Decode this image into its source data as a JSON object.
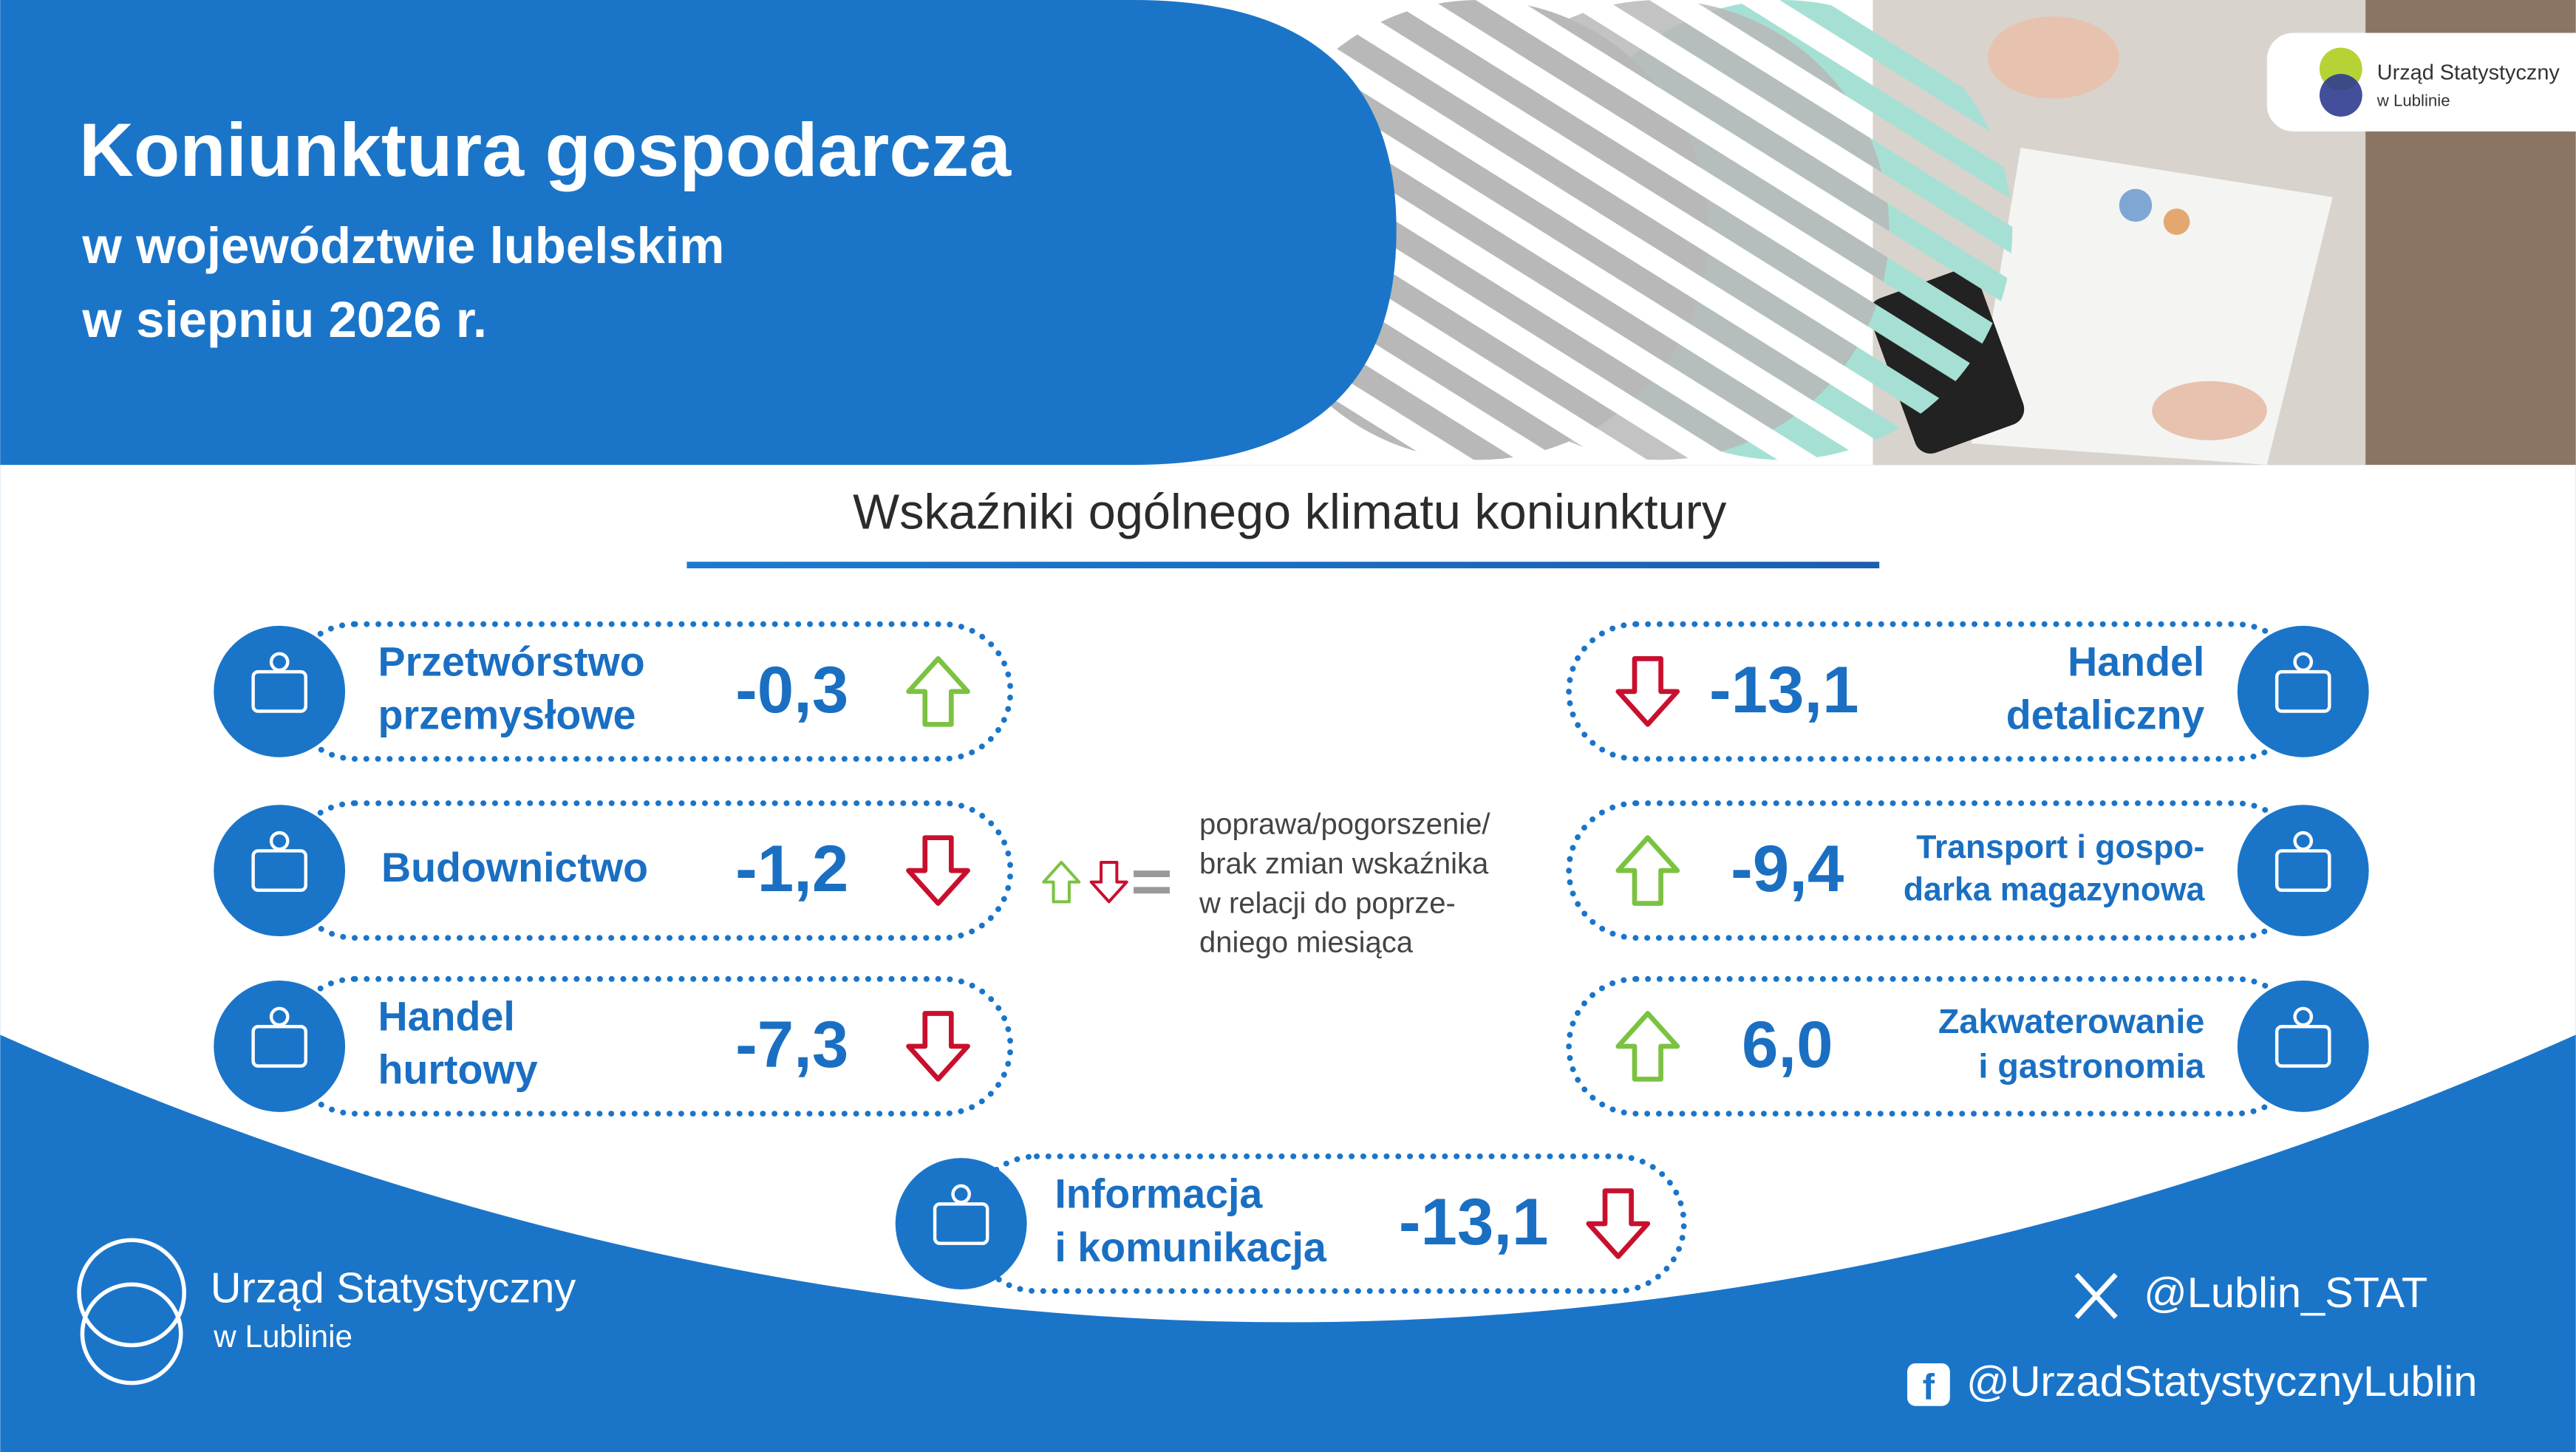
{
  "header": {
    "title": "Koniunktura gospodarcza",
    "subtitle_lines": [
      "w województwie lubelskim",
      "w siepniu 2026 r."
    ]
  },
  "logo_top": {
    "name": "Urząd Statystyczny",
    "sub": "w Lublinie"
  },
  "section_title": "Wskaźniki ogólnego klimatu koniunktury",
  "indicators": [
    {
      "name_lines": [
        "Przetwórstwo",
        "przemysłowe"
      ],
      "value": "-0,3",
      "direction": "up"
    },
    {
      "name_lines": [
        "Budownictwo"
      ],
      "value": "-1,2",
      "direction": "down"
    },
    {
      "name_lines": [
        "Handel",
        "hurtowy"
      ],
      "value": "-7,3",
      "direction": "down"
    },
    {
      "name_lines": [
        "Handel",
        "detaliczny"
      ],
      "value": "-13,1",
      "direction": "down"
    },
    {
      "name_lines": [
        "Transport i gospo-",
        "darka magazynowa"
      ],
      "value": "-9,4",
      "direction": "up"
    },
    {
      "name_lines": [
        "Zakwaterowanie",
        "i gastronomia"
      ],
      "value": "6,0",
      "direction": "up"
    },
    {
      "name_lines": [
        "Informacja",
        "i komunikacja"
      ],
      "value": "-13,1",
      "direction": "down"
    }
  ],
  "legend_lines": [
    "poprawa/pogorszenie/",
    "brak zmian wskaźnika",
    "w relacji do poprze-",
    "dniego miesiąca"
  ],
  "footer": {
    "logo_name": "Urząd Statystyczny",
    "logo_sub": "w Lublinie",
    "twitter": "@Lublin_STAT",
    "facebook": "@UrzadStatystycznyLublin"
  }
}
